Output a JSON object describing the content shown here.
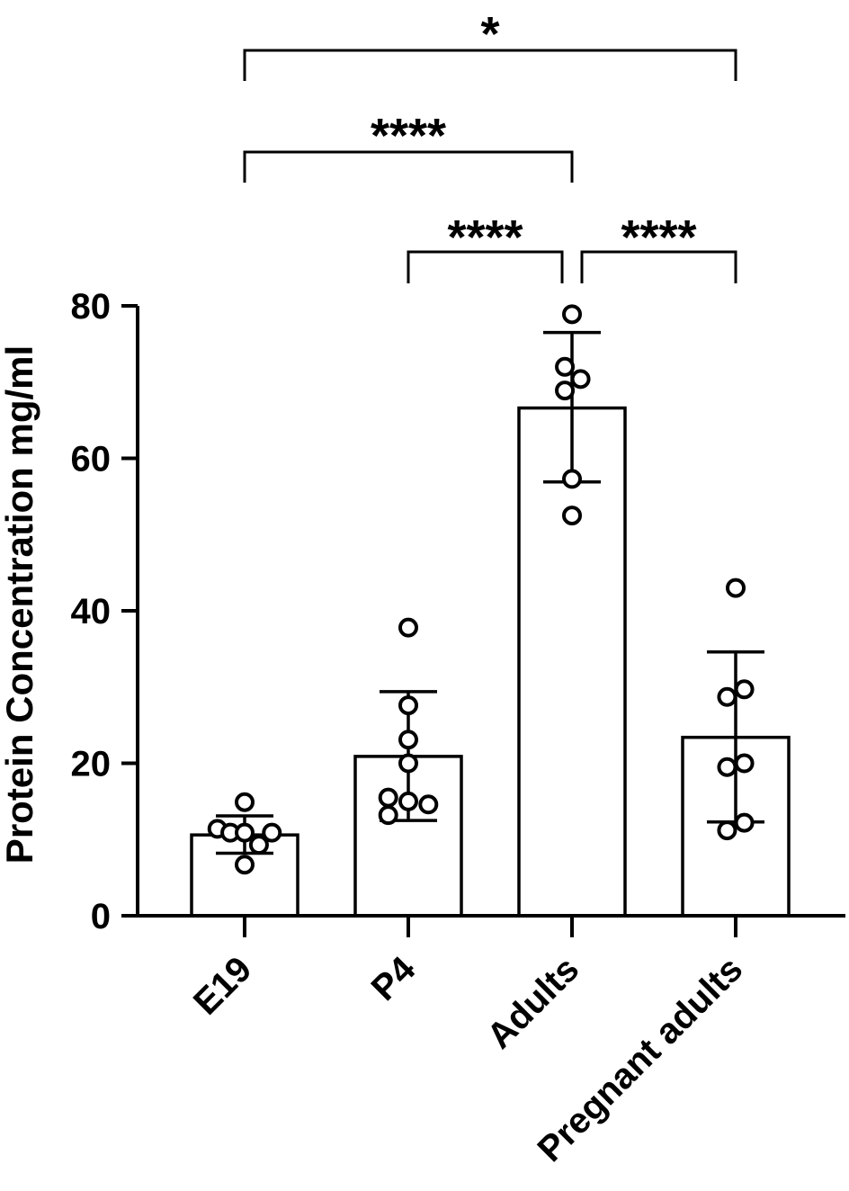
{
  "chart_data": {
    "type": "bar",
    "title": "",
    "xlabel": "",
    "ylabel": "Protein Concentration mg/ml",
    "ylim": [
      0,
      80
    ],
    "yticks": [
      0,
      20,
      40,
      60,
      80
    ],
    "categories": [
      "E19",
      "P4",
      "Adults",
      "Pregnant adults"
    ],
    "values": [
      10.6,
      20.9,
      66.6,
      23.4
    ],
    "error_low": [
      8.2,
      12.5,
      56.9,
      12.3
    ],
    "error_high": [
      13.1,
      29.4,
      76.5,
      34.6
    ],
    "points": [
      [
        {
          "dx": -0.38,
          "y": 11.4
        },
        {
          "dx": -0.2,
          "y": 10.9
        },
        {
          "dx": 0.0,
          "y": 14.9
        },
        {
          "dx": 0.0,
          "y": 10.9
        },
        {
          "dx": 0.0,
          "y": 6.7
        },
        {
          "dx": 0.2,
          "y": 9.3
        },
        {
          "dx": 0.38,
          "y": 10.9
        }
      ],
      [
        {
          "dx": -0.28,
          "y": 15.5
        },
        {
          "dx": -0.28,
          "y": 13.2
        },
        {
          "dx": 0.0,
          "y": 37.8
        },
        {
          "dx": 0.0,
          "y": 27.6
        },
        {
          "dx": 0.0,
          "y": 23.1
        },
        {
          "dx": 0.0,
          "y": 20.0
        },
        {
          "dx": 0.0,
          "y": 15.0
        },
        {
          "dx": 0.28,
          "y": 14.6
        }
      ],
      [
        {
          "dx": -0.1,
          "y": 72.0
        },
        {
          "dx": -0.1,
          "y": 68.9
        },
        {
          "dx": 0.0,
          "y": 78.9
        },
        {
          "dx": 0.0,
          "y": 57.3
        },
        {
          "dx": 0.0,
          "y": 52.5
        },
        {
          "dx": 0.12,
          "y": 70.4
        }
      ],
      [
        {
          "dx": -0.12,
          "y": 28.7
        },
        {
          "dx": -0.12,
          "y": 19.5
        },
        {
          "dx": -0.12,
          "y": 11.2
        },
        {
          "dx": 0.0,
          "y": 43.0
        },
        {
          "dx": 0.12,
          "y": 29.7
        },
        {
          "dx": 0.12,
          "y": 20.0
        },
        {
          "dx": 0.12,
          "y": 12.2
        }
      ]
    ],
    "significance": [
      {
        "from": 0,
        "to": 3,
        "label": "*"
      },
      {
        "from": 0,
        "to": 2,
        "label": "****"
      },
      {
        "from": 1,
        "to": 2,
        "label": "****"
      },
      {
        "from": 2,
        "to": 3,
        "label": "****"
      }
    ],
    "grid": false,
    "legend": "none"
  }
}
